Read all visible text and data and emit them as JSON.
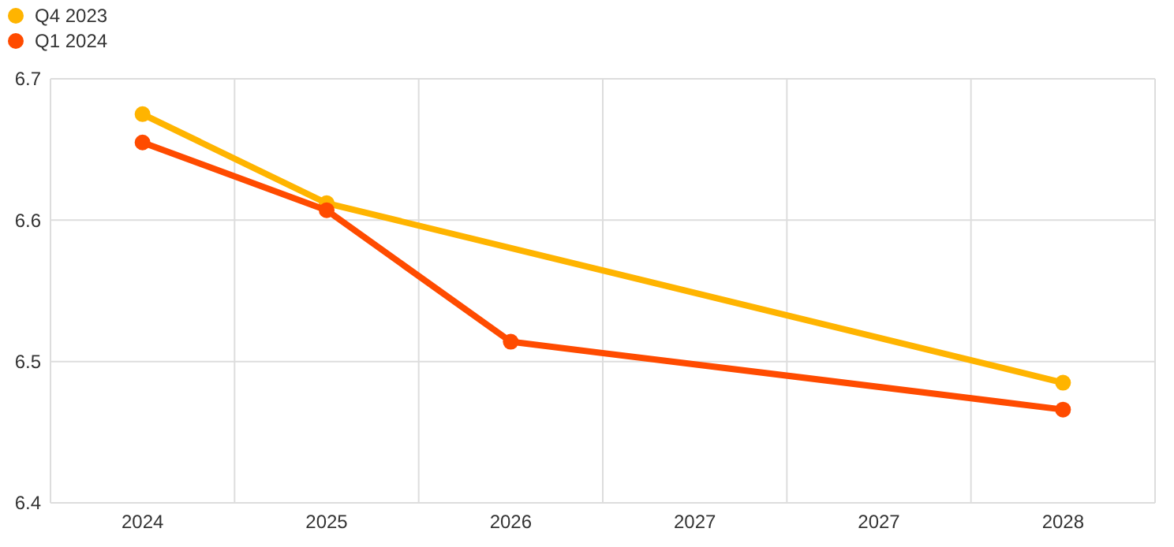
{
  "chart_data": {
    "type": "line",
    "categories": [
      "2024",
      "2025",
      "2026",
      "2027",
      "2027",
      "2028"
    ],
    "series": [
      {
        "name": "Q4 2023",
        "color": "#ffb400",
        "values": [
          6.675,
          6.612,
          null,
          null,
          null,
          6.485
        ]
      },
      {
        "name": "Q1 2024",
        "color": "#ff4b00",
        "values": [
          6.655,
          6.607,
          6.514,
          null,
          null,
          6.466
        ]
      }
    ],
    "ylim": [
      6.4,
      6.7
    ],
    "yticks": [
      6.4,
      6.5,
      6.6,
      6.7
    ],
    "grid": true,
    "legend": "top left",
    "marker": "circle",
    "line_style": "solid"
  }
}
